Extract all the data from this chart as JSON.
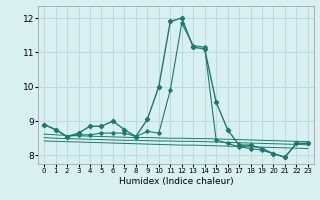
{
  "xlabel": "Humidex (Indice chaleur)",
  "bg_color": "#d8f0f0",
  "grid_color": "#b8d8d8",
  "line_color": "#1a7a6e",
  "xlim": [
    -0.5,
    23.5
  ],
  "ylim": [
    7.75,
    12.35
  ],
  "yticks": [
    8,
    9,
    10,
    11,
    12
  ],
  "xticks": [
    0,
    1,
    2,
    3,
    4,
    5,
    6,
    7,
    8,
    9,
    10,
    11,
    12,
    13,
    14,
    15,
    16,
    17,
    18,
    19,
    20,
    21,
    22,
    23
  ],
  "main_series": [
    8.9,
    8.75,
    8.55,
    8.65,
    8.85,
    8.85,
    9.0,
    8.75,
    8.55,
    9.05,
    10.0,
    11.9,
    12.0,
    11.15,
    11.1,
    9.55,
    8.75,
    8.3,
    8.3,
    8.2,
    8.05,
    7.95,
    8.35,
    8.35
  ],
  "sec_series": [
    8.9,
    8.75,
    8.55,
    8.6,
    8.6,
    8.65,
    8.65,
    8.65,
    8.55,
    8.7,
    8.65,
    9.9,
    11.85,
    11.2,
    11.15,
    8.45,
    8.35,
    8.25,
    8.2,
    8.15,
    8.05,
    7.95,
    8.35,
    8.35
  ],
  "flat1": [
    8.62,
    8.6,
    8.58,
    8.57,
    8.56,
    8.55,
    8.54,
    8.53,
    8.52,
    8.52,
    8.51,
    8.5,
    8.5,
    8.49,
    8.49,
    8.48,
    8.47,
    8.46,
    8.45,
    8.44,
    8.43,
    8.42,
    8.41,
    8.4
  ],
  "flat2": [
    8.52,
    8.5,
    8.49,
    8.48,
    8.47,
    8.46,
    8.45,
    8.44,
    8.44,
    8.43,
    8.42,
    8.42,
    8.41,
    8.41,
    8.4,
    8.39,
    8.38,
    8.37,
    8.36,
    8.35,
    8.34,
    8.33,
    8.32,
    8.31
  ],
  "flat3": [
    8.42,
    8.41,
    8.4,
    8.39,
    8.38,
    8.37,
    8.36,
    8.35,
    8.34,
    8.33,
    8.32,
    8.31,
    8.3,
    8.3,
    8.29,
    8.28,
    8.27,
    8.26,
    8.25,
    8.24,
    8.23,
    8.22,
    8.21,
    8.2
  ]
}
